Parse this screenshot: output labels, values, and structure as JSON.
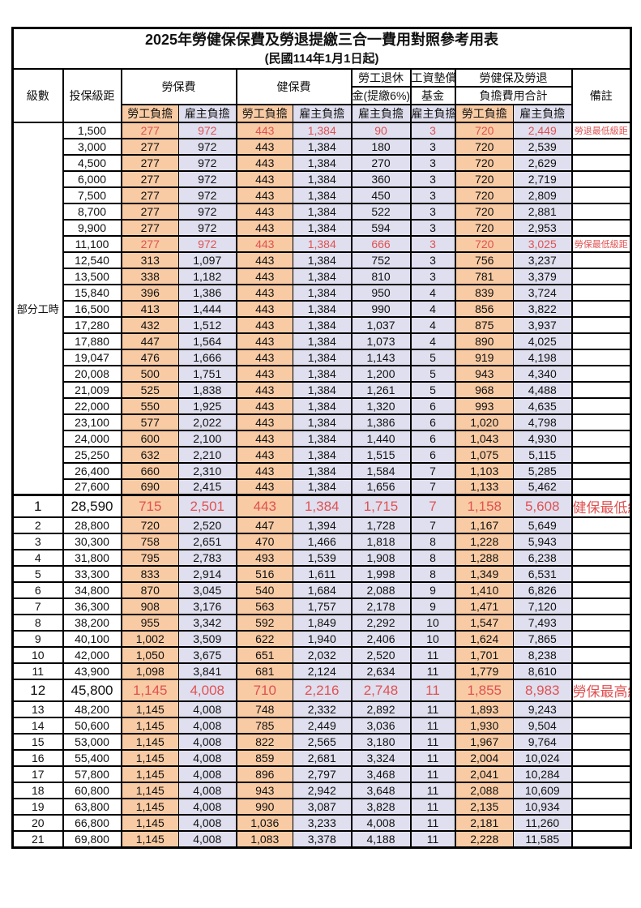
{
  "colors": {
    "worker_bg": "#F8CBA4",
    "employer_bg": "#DFDFEF",
    "highlight_red": "#E05252",
    "border": "#000000"
  },
  "title": "2025年勞健保保費及勞退提繳三合一費用對照參考用表",
  "subtitle": "(民國114年1月1日起)",
  "header": {
    "level": "級數",
    "bracket": "投保級距",
    "labor_fee": "勞保費",
    "health_fee": "健保費",
    "pension_top": "勞工退休",
    "pension_bottom": "金(提繳6%)",
    "wage_fund_top": "工資墊償",
    "wage_fund_bottom": "基金",
    "total_top": "勞健保及勞退",
    "total_bottom": "負擔費用合計",
    "note": "備註",
    "worker_share": "勞工負擔",
    "employer_share": "雇主負擔"
  },
  "part_time": {
    "label": "部分工時",
    "rowspan": 23
  },
  "rows": [
    {
      "level": "",
      "bracket": "1,500",
      "li_w": "277",
      "li_e": "972",
      "hi_w": "443",
      "hi_e": "1,384",
      "pension": "90",
      "wage": "3",
      "tot_w": "720",
      "tot_e": "2,449",
      "note": "勞退最低級距",
      "red": true
    },
    {
      "level": "",
      "bracket": "3,000",
      "li_w": "277",
      "li_e": "972",
      "hi_w": "443",
      "hi_e": "1,384",
      "pension": "180",
      "wage": "3",
      "tot_w": "720",
      "tot_e": "2,539",
      "note": ""
    },
    {
      "level": "",
      "bracket": "4,500",
      "li_w": "277",
      "li_e": "972",
      "hi_w": "443",
      "hi_e": "1,384",
      "pension": "270",
      "wage": "3",
      "tot_w": "720",
      "tot_e": "2,629",
      "note": ""
    },
    {
      "level": "",
      "bracket": "6,000",
      "li_w": "277",
      "li_e": "972",
      "hi_w": "443",
      "hi_e": "1,384",
      "pension": "360",
      "wage": "3",
      "tot_w": "720",
      "tot_e": "2,719",
      "note": ""
    },
    {
      "level": "",
      "bracket": "7,500",
      "li_w": "277",
      "li_e": "972",
      "hi_w": "443",
      "hi_e": "1,384",
      "pension": "450",
      "wage": "3",
      "tot_w": "720",
      "tot_e": "2,809",
      "note": ""
    },
    {
      "level": "",
      "bracket": "8,700",
      "li_w": "277",
      "li_e": "972",
      "hi_w": "443",
      "hi_e": "1,384",
      "pension": "522",
      "wage": "3",
      "tot_w": "720",
      "tot_e": "2,881",
      "note": ""
    },
    {
      "level": "",
      "bracket": "9,900",
      "li_w": "277",
      "li_e": "972",
      "hi_w": "443",
      "hi_e": "1,384",
      "pension": "594",
      "wage": "3",
      "tot_w": "720",
      "tot_e": "2,953",
      "note": ""
    },
    {
      "level": "",
      "bracket": "11,100",
      "li_w": "277",
      "li_e": "972",
      "hi_w": "443",
      "hi_e": "1,384",
      "pension": "666",
      "wage": "3",
      "tot_w": "720",
      "tot_e": "3,025",
      "note": "勞保最低級距",
      "red": true
    },
    {
      "level": "",
      "bracket": "12,540",
      "li_w": "313",
      "li_e": "1,097",
      "hi_w": "443",
      "hi_e": "1,384",
      "pension": "752",
      "wage": "3",
      "tot_w": "756",
      "tot_e": "3,237",
      "note": ""
    },
    {
      "level": "",
      "bracket": "13,500",
      "li_w": "338",
      "li_e": "1,182",
      "hi_w": "443",
      "hi_e": "1,384",
      "pension": "810",
      "wage": "3",
      "tot_w": "781",
      "tot_e": "3,379",
      "note": ""
    },
    {
      "level": "",
      "bracket": "15,840",
      "li_w": "396",
      "li_e": "1,386",
      "hi_w": "443",
      "hi_e": "1,384",
      "pension": "950",
      "wage": "4",
      "tot_w": "839",
      "tot_e": "3,724",
      "note": ""
    },
    {
      "level": "",
      "bracket": "16,500",
      "li_w": "413",
      "li_e": "1,444",
      "hi_w": "443",
      "hi_e": "1,384",
      "pension": "990",
      "wage": "4",
      "tot_w": "856",
      "tot_e": "3,822",
      "note": ""
    },
    {
      "level": "",
      "bracket": "17,280",
      "li_w": "432",
      "li_e": "1,512",
      "hi_w": "443",
      "hi_e": "1,384",
      "pension": "1,037",
      "wage": "4",
      "tot_w": "875",
      "tot_e": "3,937",
      "note": ""
    },
    {
      "level": "",
      "bracket": "17,880",
      "li_w": "447",
      "li_e": "1,564",
      "hi_w": "443",
      "hi_e": "1,384",
      "pension": "1,073",
      "wage": "4",
      "tot_w": "890",
      "tot_e": "4,025",
      "note": ""
    },
    {
      "level": "",
      "bracket": "19,047",
      "li_w": "476",
      "li_e": "1,666",
      "hi_w": "443",
      "hi_e": "1,384",
      "pension": "1,143",
      "wage": "5",
      "tot_w": "919",
      "tot_e": "4,198",
      "note": ""
    },
    {
      "level": "",
      "bracket": "20,008",
      "li_w": "500",
      "li_e": "1,751",
      "hi_w": "443",
      "hi_e": "1,384",
      "pension": "1,200",
      "wage": "5",
      "tot_w": "943",
      "tot_e": "4,340",
      "note": ""
    },
    {
      "level": "",
      "bracket": "21,009",
      "li_w": "525",
      "li_e": "1,838",
      "hi_w": "443",
      "hi_e": "1,384",
      "pension": "1,261",
      "wage": "5",
      "tot_w": "968",
      "tot_e": "4,488",
      "note": ""
    },
    {
      "level": "",
      "bracket": "22,000",
      "li_w": "550",
      "li_e": "1,925",
      "hi_w": "443",
      "hi_e": "1,384",
      "pension": "1,320",
      "wage": "6",
      "tot_w": "993",
      "tot_e": "4,635",
      "note": ""
    },
    {
      "level": "",
      "bracket": "23,100",
      "li_w": "577",
      "li_e": "2,022",
      "hi_w": "443",
      "hi_e": "1,384",
      "pension": "1,386",
      "wage": "6",
      "tot_w": "1,020",
      "tot_e": "4,798",
      "note": ""
    },
    {
      "level": "",
      "bracket": "24,000",
      "li_w": "600",
      "li_e": "2,100",
      "hi_w": "443",
      "hi_e": "1,384",
      "pension": "1,440",
      "wage": "6",
      "tot_w": "1,043",
      "tot_e": "4,930",
      "note": ""
    },
    {
      "level": "",
      "bracket": "25,250",
      "li_w": "632",
      "li_e": "2,210",
      "hi_w": "443",
      "hi_e": "1,384",
      "pension": "1,515",
      "wage": "6",
      "tot_w": "1,075",
      "tot_e": "5,115",
      "note": ""
    },
    {
      "level": "",
      "bracket": "26,400",
      "li_w": "660",
      "li_e": "2,310",
      "hi_w": "443",
      "hi_e": "1,384",
      "pension": "1,584",
      "wage": "7",
      "tot_w": "1,103",
      "tot_e": "5,285",
      "note": ""
    },
    {
      "level": "",
      "bracket": "27,600",
      "li_w": "690",
      "li_e": "2,415",
      "hi_w": "443",
      "hi_e": "1,384",
      "pension": "1,656",
      "wage": "7",
      "tot_w": "1,133",
      "tot_e": "5,462",
      "note": ""
    },
    {
      "level": "1",
      "bracket": "28,590",
      "li_w": "715",
      "li_e": "2,501",
      "hi_w": "443",
      "hi_e": "1,384",
      "pension": "1,715",
      "wage": "7",
      "tot_w": "1,158",
      "tot_e": "5,608",
      "note": "健保最低級距",
      "red": true,
      "big": true,
      "thick_top": true
    },
    {
      "level": "2",
      "bracket": "28,800",
      "li_w": "720",
      "li_e": "2,520",
      "hi_w": "447",
      "hi_e": "1,394",
      "pension": "1,728",
      "wage": "7",
      "tot_w": "1,167",
      "tot_e": "5,649",
      "note": ""
    },
    {
      "level": "3",
      "bracket": "30,300",
      "li_w": "758",
      "li_e": "2,651",
      "hi_w": "470",
      "hi_e": "1,466",
      "pension": "1,818",
      "wage": "8",
      "tot_w": "1,228",
      "tot_e": "5,943",
      "note": ""
    },
    {
      "level": "4",
      "bracket": "31,800",
      "li_w": "795",
      "li_e": "2,783",
      "hi_w": "493",
      "hi_e": "1,539",
      "pension": "1,908",
      "wage": "8",
      "tot_w": "1,288",
      "tot_e": "6,238",
      "note": ""
    },
    {
      "level": "5",
      "bracket": "33,300",
      "li_w": "833",
      "li_e": "2,914",
      "hi_w": "516",
      "hi_e": "1,611",
      "pension": "1,998",
      "wage": "8",
      "tot_w": "1,349",
      "tot_e": "6,531",
      "note": ""
    },
    {
      "level": "6",
      "bracket": "34,800",
      "li_w": "870",
      "li_e": "3,045",
      "hi_w": "540",
      "hi_e": "1,684",
      "pension": "2,088",
      "wage": "9",
      "tot_w": "1,410",
      "tot_e": "6,826",
      "note": ""
    },
    {
      "level": "7",
      "bracket": "36,300",
      "li_w": "908",
      "li_e": "3,176",
      "hi_w": "563",
      "hi_e": "1,757",
      "pension": "2,178",
      "wage": "9",
      "tot_w": "1,471",
      "tot_e": "7,120",
      "note": ""
    },
    {
      "level": "8",
      "bracket": "38,200",
      "li_w": "955",
      "li_e": "3,342",
      "hi_w": "592",
      "hi_e": "1,849",
      "pension": "2,292",
      "wage": "10",
      "tot_w": "1,547",
      "tot_e": "7,493",
      "note": ""
    },
    {
      "level": "9",
      "bracket": "40,100",
      "li_w": "1,002",
      "li_e": "3,509",
      "hi_w": "622",
      "hi_e": "1,940",
      "pension": "2,406",
      "wage": "10",
      "tot_w": "1,624",
      "tot_e": "7,865",
      "note": ""
    },
    {
      "level": "10",
      "bracket": "42,000",
      "li_w": "1,050",
      "li_e": "3,675",
      "hi_w": "651",
      "hi_e": "2,032",
      "pension": "2,520",
      "wage": "11",
      "tot_w": "1,701",
      "tot_e": "8,238",
      "note": ""
    },
    {
      "level": "11",
      "bracket": "43,900",
      "li_w": "1,098",
      "li_e": "3,841",
      "hi_w": "681",
      "hi_e": "2,124",
      "pension": "2,634",
      "wage": "11",
      "tot_w": "1,779",
      "tot_e": "8,610",
      "note": ""
    },
    {
      "level": "12",
      "bracket": "45,800",
      "li_w": "1,145",
      "li_e": "4,008",
      "hi_w": "710",
      "hi_e": "2,216",
      "pension": "2,748",
      "wage": "11",
      "tot_w": "1,855",
      "tot_e": "8,983",
      "note": "勞保最高級距",
      "red": true,
      "big": true
    },
    {
      "level": "13",
      "bracket": "48,200",
      "li_w": "1,145",
      "li_e": "4,008",
      "hi_w": "748",
      "hi_e": "2,332",
      "pension": "2,892",
      "wage": "11",
      "tot_w": "1,893",
      "tot_e": "9,243",
      "note": ""
    },
    {
      "level": "14",
      "bracket": "50,600",
      "li_w": "1,145",
      "li_e": "4,008",
      "hi_w": "785",
      "hi_e": "2,449",
      "pension": "3,036",
      "wage": "11",
      "tot_w": "1,930",
      "tot_e": "9,504",
      "note": ""
    },
    {
      "level": "15",
      "bracket": "53,000",
      "li_w": "1,145",
      "li_e": "4,008",
      "hi_w": "822",
      "hi_e": "2,565",
      "pension": "3,180",
      "wage": "11",
      "tot_w": "1,967",
      "tot_e": "9,764",
      "note": ""
    },
    {
      "level": "16",
      "bracket": "55,400",
      "li_w": "1,145",
      "li_e": "4,008",
      "hi_w": "859",
      "hi_e": "2,681",
      "pension": "3,324",
      "wage": "11",
      "tot_w": "2,004",
      "tot_e": "10,024",
      "note": ""
    },
    {
      "level": "17",
      "bracket": "57,800",
      "li_w": "1,145",
      "li_e": "4,008",
      "hi_w": "896",
      "hi_e": "2,797",
      "pension": "3,468",
      "wage": "11",
      "tot_w": "2,041",
      "tot_e": "10,284",
      "note": ""
    },
    {
      "level": "18",
      "bracket": "60,800",
      "li_w": "1,145",
      "li_e": "4,008",
      "hi_w": "943",
      "hi_e": "2,942",
      "pension": "3,648",
      "wage": "11",
      "tot_w": "2,088",
      "tot_e": "10,609",
      "note": ""
    },
    {
      "level": "19",
      "bracket": "63,800",
      "li_w": "1,145",
      "li_e": "4,008",
      "hi_w": "990",
      "hi_e": "3,087",
      "pension": "3,828",
      "wage": "11",
      "tot_w": "2,135",
      "tot_e": "10,934",
      "note": ""
    },
    {
      "level": "20",
      "bracket": "66,800",
      "li_w": "1,145",
      "li_e": "4,008",
      "hi_w": "1,036",
      "hi_e": "3,233",
      "pension": "4,008",
      "wage": "11",
      "tot_w": "2,181",
      "tot_e": "11,260",
      "note": ""
    },
    {
      "level": "21",
      "bracket": "69,800",
      "li_w": "1,145",
      "li_e": "4,008",
      "hi_w": "1,083",
      "hi_e": "3,378",
      "pension": "4,188",
      "wage": "11",
      "tot_w": "2,228",
      "tot_e": "11,585",
      "note": ""
    }
  ]
}
